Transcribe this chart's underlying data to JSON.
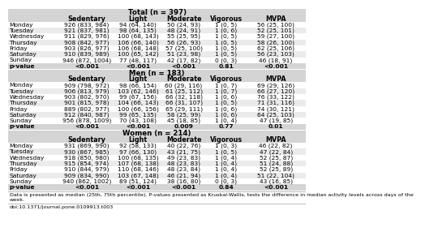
{
  "title_total": "Total (n = 397)",
  "title_men": "Men (n = 183)",
  "title_women": "Women (n = 214)",
  "col_headers": [
    "Sedentary",
    "Light",
    "Moderate",
    "Vigorous",
    "MVPA"
  ],
  "total_rows": [
    [
      "Monday",
      "926 (833, 984)",
      "94 (64, 140)",
      "50 (24, 93)",
      "1 (0, 5)",
      "56 (25, 100)"
    ],
    [
      "Tuesday",
      "921 (837, 981)",
      "98 (64, 135)",
      "48 (24, 91)",
      "1 (0, 6)",
      "52 (25, 101)"
    ],
    [
      "Wednesday",
      "911 (829, 976)",
      "100 (68, 143)",
      "55 (25, 95)",
      "1 (0, 5)",
      "59 (27, 100)"
    ],
    [
      "Thursday",
      "908 (842, 977)",
      "106 (66, 140)",
      "56 (26, 93)",
      "1 (0, 5)",
      "58 (26, 100)"
    ],
    [
      "Friday",
      "903 (826, 977)",
      "106 (68, 148)",
      "57 (25, 100)",
      "1 (0, 5)",
      "62 (25, 106)"
    ],
    [
      "Saturday",
      "910 (839, 989)",
      "100 (65, 142)",
      "51 (23, 98)",
      "1 (0, 5)",
      "56 (23, 103)"
    ],
    [
      "Sunday",
      "946 (872, 1004)",
      "77 (48, 117)",
      "42 (17, 82)",
      "0 (0, 3)",
      "46 (18, 91)"
    ],
    [
      "p-value",
      "<0.001",
      "<0.001",
      "<0.001",
      "0.81",
      "<0.001"
    ]
  ],
  "men_rows": [
    [
      "Monday",
      "909 (798, 972)",
      "98 (66, 154)",
      "60 (29, 116)",
      "1 (0, 7)",
      "69 (29, 126)"
    ],
    [
      "Tuesday",
      "906 (813, 979)",
      "103 (62, 146)",
      "61 (25, 112)",
      "1 (0, 7)",
      "66 (27, 120)"
    ],
    [
      "Wednesday",
      "903 (802, 970)",
      "99 (67, 156)",
      "66 (32, 118)",
      "1 (0, 6)",
      "76 (33, 122)"
    ],
    [
      "Thursday",
      "901 (815, 978)",
      "104 (66, 143)",
      "66 (31, 107)",
      "1 (0, 5)",
      "71 (31, 116)"
    ],
    [
      "Friday",
      "889 (802, 977)",
      "100 (66, 156)",
      "65 (29, 111)",
      "1 (0, 6)",
      "74 (30, 121)"
    ],
    [
      "Saturday",
      "912 (840, 987)",
      "99 (65, 135)",
      "58 (25, 99)",
      "1 (0, 6)",
      "64 (25, 103)"
    ],
    [
      "Sunday",
      "956 (878, 1009)",
      "70 (43, 108)",
      "45 (18, 85)",
      "1 (0, 4)",
      "47 (19, 85)"
    ],
    [
      "p-value",
      "<0.001",
      "<0.001",
      "0.009",
      "0.77",
      "0.01"
    ]
  ],
  "women_rows": [
    [
      "Monday",
      "931 (869, 990)",
      "92 (58, 133)",
      "40 (22, 76)",
      "1 (0, 3)",
      "46 (22, 82)"
    ],
    [
      "Tuesday",
      "930 (867, 985)",
      "97 (66, 130)",
      "43 (21, 75)",
      "1 (0, 5)",
      "47 (22, 84)"
    ],
    [
      "Wednesday",
      "918 (850, 980)",
      "100 (68, 135)",
      "49 (23, 83)",
      "1 (0, 4)",
      "52 (25, 87)"
    ],
    [
      "Thursday",
      "915 (854, 974)",
      "107 (68, 138)",
      "48 (23, 83)",
      "1 (0, 4)",
      "51 (24, 88)"
    ],
    [
      "Friday",
      "910 (844, 979)",
      "110 (68, 146)",
      "48 (23, 84)",
      "1 (0, 4)",
      "52 (25, 89)"
    ],
    [
      "Saturday",
      "909 (834, 990)",
      "103 (67, 148)",
      "46 (21, 94)",
      "1 (0, 4)",
      "51 (22, 104)"
    ],
    [
      "Sunday",
      "940 (862, 1002)",
      "89 (51, 124)",
      "38 (16, 80)",
      "0 (0, 3)",
      "43 (16, 85)"
    ],
    [
      "p-value",
      "<0.001",
      "<0.001",
      "<0.001",
      "0.84",
      "<0.001"
    ]
  ],
  "footnote1": "Data is presented as median (25th, 75th percentile). P-values presented as Kruskal-Wallis, tests the difference in median activity levels across days of the",
  "footnote2": "week.",
  "doi": "doi:10.1371/journal.pone.0109913.t003",
  "bg_gray": "#d4d4d4",
  "bg_light": "#ebebeb",
  "bg_white": "#ffffff"
}
